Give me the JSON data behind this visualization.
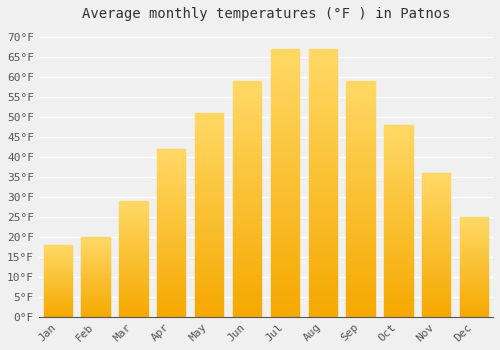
{
  "title": "Average monthly temperatures (°F ) in Patnos",
  "months": [
    "Jan",
    "Feb",
    "Mar",
    "Apr",
    "May",
    "Jun",
    "Jul",
    "Aug",
    "Sep",
    "Oct",
    "Nov",
    "Dec"
  ],
  "values": [
    18,
    20,
    29,
    42,
    51,
    59,
    67,
    67,
    59,
    48,
    36,
    25
  ],
  "bar_color_bottom": "#F5A800",
  "bar_color_top": "#FFD966",
  "background_color": "#F0F0F0",
  "grid_color": "#FFFFFF",
  "yticks": [
    0,
    5,
    10,
    15,
    20,
    25,
    30,
    35,
    40,
    45,
    50,
    55,
    60,
    65,
    70
  ],
  "ylim": [
    0,
    72
  ],
  "title_fontsize": 10,
  "tick_fontsize": 8,
  "font_family": "monospace"
}
